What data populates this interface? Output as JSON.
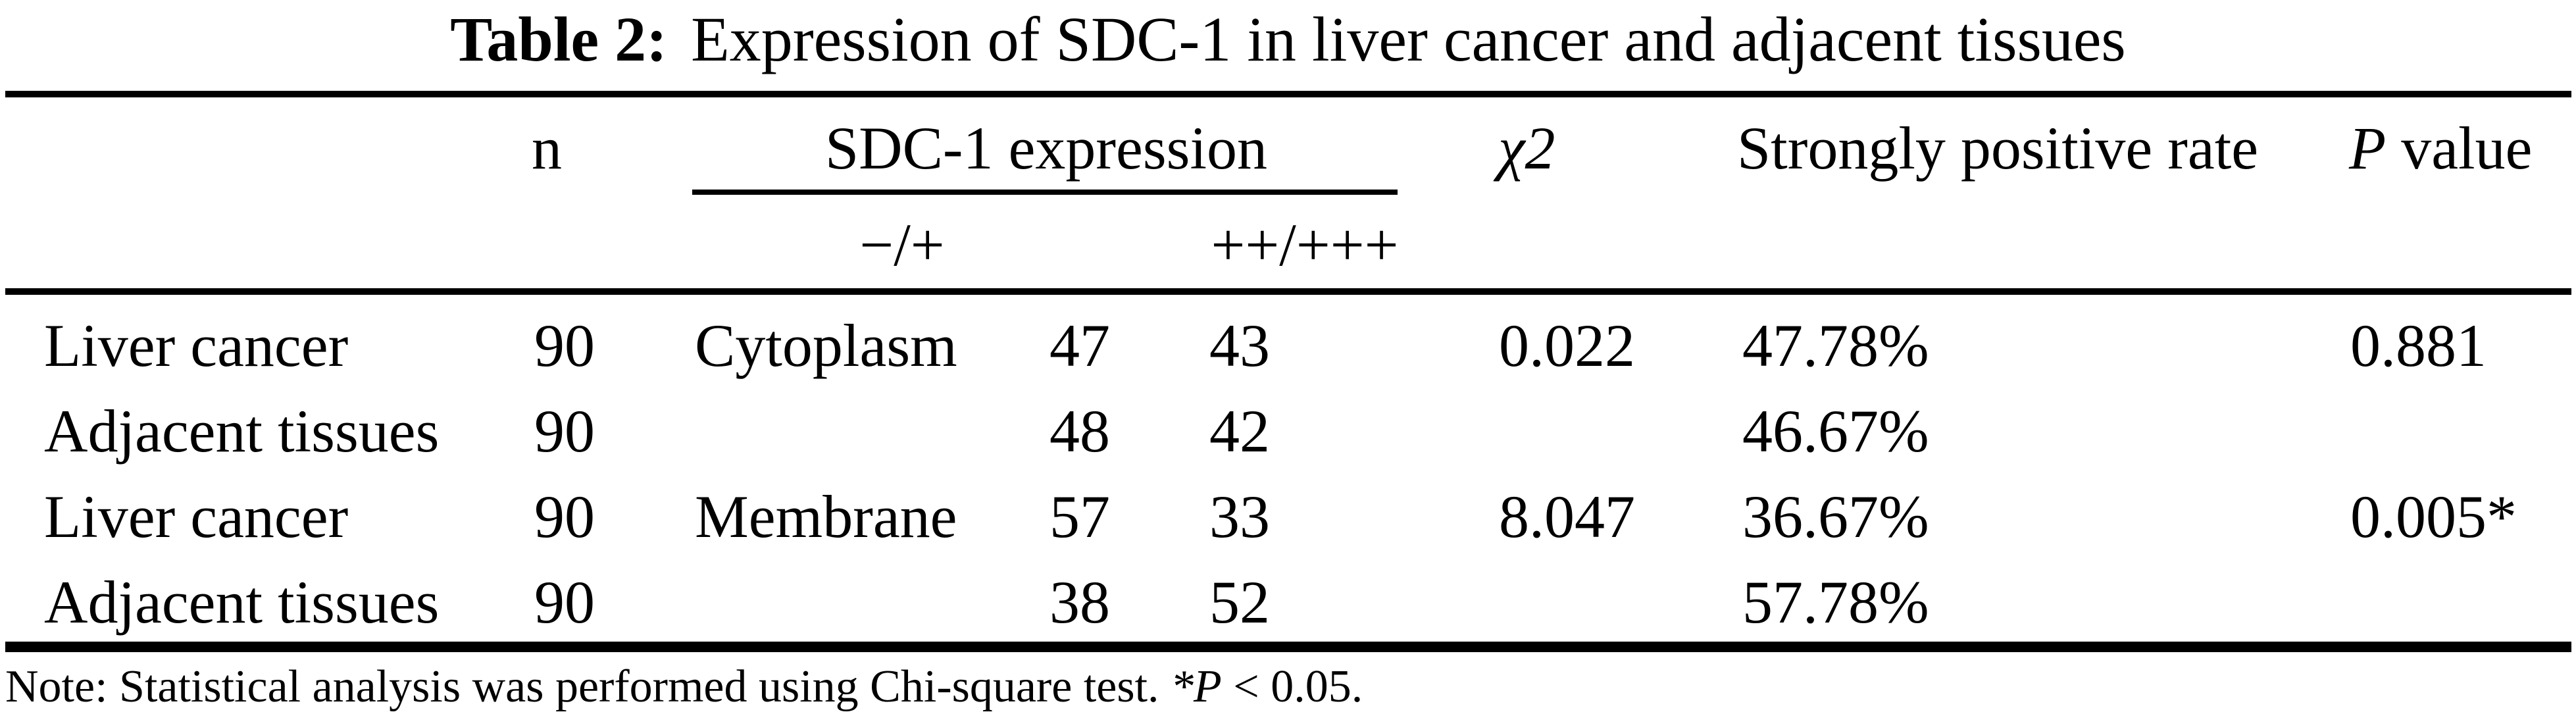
{
  "colors": {
    "text": "#000000",
    "background": "#ffffff"
  },
  "title": {
    "label": "Table 2:",
    "text": "Expression of SDC-1 in liver cancer and adjacent tissues"
  },
  "table": {
    "headers": {
      "n": "n",
      "sdc1": "SDC-1 expression",
      "chi2": "χ2",
      "rate": "Strongly positive rate",
      "p_italic": "P",
      "p_rest": " value",
      "sub_low": "−/+",
      "sub_high": "++/+++"
    },
    "rows": [
      {
        "group": "Liver cancer",
        "n": "90",
        "location": "Cytoplasm",
        "low": "47",
        "high": "43",
        "chi2": "0.022",
        "rate": "47.78%",
        "p": "0.881"
      },
      {
        "group": "Adjacent tissues",
        "n": "90",
        "location": "",
        "low": "48",
        "high": "42",
        "chi2": "",
        "rate": "46.67%",
        "p": ""
      },
      {
        "group": "Liver cancer",
        "n": "90",
        "location": "Membrane",
        "low": "57",
        "high": "33",
        "chi2": "8.047",
        "rate": "36.67%",
        "p": "0.005*"
      },
      {
        "group": "Adjacent tissues",
        "n": "90",
        "location": "",
        "low": "38",
        "high": "52",
        "chi2": "",
        "rate": "57.78%",
        "p": ""
      }
    ]
  },
  "note": {
    "prefix": "Note: Statistical analysis was performed using Chi-square test. ",
    "star_p": "*P",
    "suffix": " < 0.05."
  }
}
